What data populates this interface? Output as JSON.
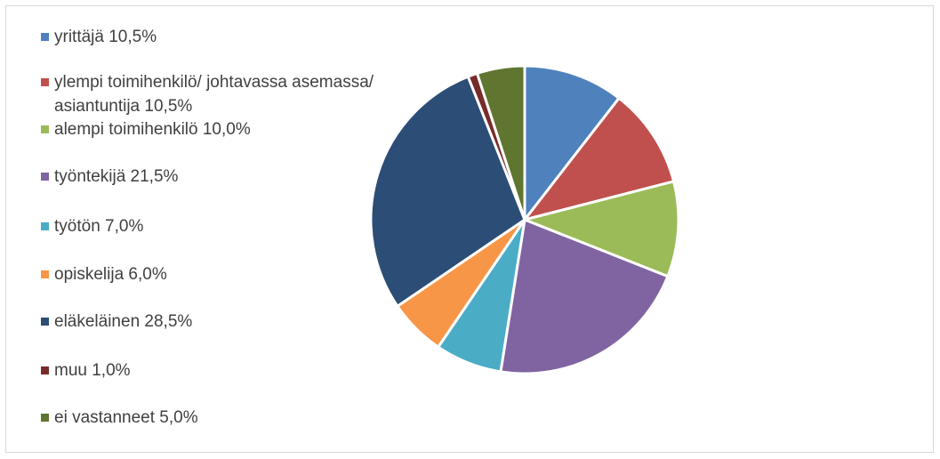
{
  "chart_data": {
    "type": "pie",
    "title": "",
    "legend_position": "left",
    "categories": [
      "yrittäjä 10,5%",
      "ylempi toimihenkilö/ johtavassa asemassa/ asiantuntija 10,5%",
      "alempi toimihenkilö 10,0%",
      "työntekijä 21,5%",
      "työtön 7,0%",
      "opiskelija 6,0%",
      "eläkeläinen 28,5%",
      "muu 1,0%",
      "ei vastanneet 5,0%"
    ],
    "values": [
      10.5,
      10.5,
      10.0,
      21.5,
      7.0,
      6.0,
      28.5,
      1.0,
      5.0
    ],
    "colors": [
      "#4f81bd",
      "#c0504d",
      "#9bbb59",
      "#8064a2",
      "#4bacc6",
      "#f79646",
      "#2c4d75",
      "#772c2a",
      "#5f7530"
    ]
  }
}
